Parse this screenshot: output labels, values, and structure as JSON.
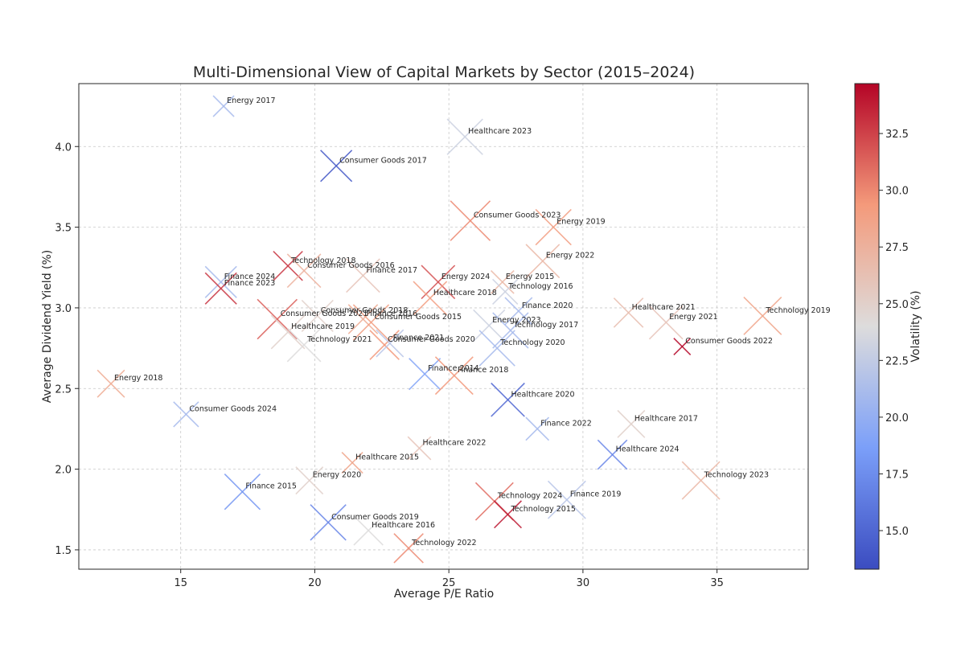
{
  "chart_data": {
    "type": "scatter",
    "title": "Multi-Dimensional View of Capital Markets by Sector (2015–2024)",
    "xlabel": "Average P/E Ratio",
    "ylabel": "Average Dividend Yield (%)",
    "colorbar_label": "Volatility (%)",
    "xlim": [
      11.2,
      38.4
    ],
    "ylim": [
      1.38,
      4.39
    ],
    "xticks": [
      "15",
      "20",
      "25",
      "30",
      "35"
    ],
    "yticks": [
      "1.5",
      "2.0",
      "2.5",
      "3.0",
      "3.5",
      "4.0"
    ],
    "colorbar_ticks": [
      "15.0",
      "17.5",
      "20.0",
      "22.5",
      "25.0",
      "27.5",
      "30.0",
      "32.5"
    ],
    "color_range": [
      13.3,
      34.7
    ],
    "marker": "x",
    "grid": true,
    "points": [
      {
        "label": "Energy 2017",
        "x": 16.6,
        "y": 4.25,
        "volatility": 21,
        "size": 1.0
      },
      {
        "label": "Healthcare 2023",
        "x": 25.6,
        "y": 4.06,
        "volatility": 23,
        "size": 1.7
      },
      {
        "label": "Consumer Goods 2017",
        "x": 20.8,
        "y": 3.88,
        "volatility": 14,
        "size": 1.5
      },
      {
        "label": "Consumer Goods 2023",
        "x": 25.8,
        "y": 3.54,
        "volatility": 30,
        "size": 1.9
      },
      {
        "label": "Energy 2019",
        "x": 28.9,
        "y": 3.5,
        "volatility": 29,
        "size": 1.7
      },
      {
        "label": "Energy 2022",
        "x": 28.5,
        "y": 3.29,
        "volatility": 27,
        "size": 1.6
      },
      {
        "label": "Technology 2018",
        "x": 19.0,
        "y": 3.26,
        "volatility": 33,
        "size": 1.4
      },
      {
        "label": "Consumer Goods 2016",
        "x": 19.6,
        "y": 3.23,
        "volatility": 27.5,
        "size": 1.6
      },
      {
        "label": "Finance 2017",
        "x": 21.8,
        "y": 3.2,
        "volatility": 26,
        "size": 1.6
      },
      {
        "label": "Energy 2024",
        "x": 24.6,
        "y": 3.16,
        "volatility": 32,
        "size": 1.6
      },
      {
        "label": "Energy 2015",
        "x": 27.0,
        "y": 3.16,
        "volatility": 27,
        "size": 1.1
      },
      {
        "label": "Finance 2024",
        "x": 16.5,
        "y": 3.16,
        "volatility": 21,
        "size": 1.5
      },
      {
        "label": "Finance 2023",
        "x": 16.5,
        "y": 3.12,
        "volatility": 33,
        "size": 1.5
      },
      {
        "label": "Technology 2016",
        "x": 27.1,
        "y": 3.1,
        "volatility": 23,
        "size": 1.2
      },
      {
        "label": "Healthcare 2018",
        "x": 24.3,
        "y": 3.06,
        "volatility": 29,
        "size": 1.6
      },
      {
        "label": "Finance 2020",
        "x": 27.6,
        "y": 2.98,
        "volatility": 21,
        "size": 1.3
      },
      {
        "label": "Healthcare 2021",
        "x": 31.7,
        "y": 2.97,
        "volatility": 26.5,
        "size": 1.4
      },
      {
        "label": "Energy 2021",
        "x": 33.1,
        "y": 2.91,
        "volatility": 26,
        "size": 1.6
      },
      {
        "label": "Technology 2019",
        "x": 36.7,
        "y": 2.95,
        "volatility": 28.5,
        "size": 1.8
      },
      {
        "label": "Consumer Goods 2018",
        "x": 20.1,
        "y": 2.95,
        "volatility": 25,
        "size": 1.5
      },
      {
        "label": "Consumer Goods 2021",
        "x": 18.6,
        "y": 2.93,
        "volatility": 31.5,
        "size": 1.9
      },
      {
        "label": "Finance 2016",
        "x": 21.8,
        "y": 2.93,
        "volatility": 28,
        "size": 1.4
      },
      {
        "label": "Consumer Goods 2015",
        "x": 22.1,
        "y": 2.91,
        "volatility": 29,
        "size": 1.7
      },
      {
        "label": "Energy 2023",
        "x": 26.5,
        "y": 2.89,
        "volatility": 23,
        "size": 1.5
      },
      {
        "label": "Technology 2017",
        "x": 27.3,
        "y": 2.86,
        "volatility": 21,
        "size": 1.7
      },
      {
        "label": "Healthcare 2019",
        "x": 19.0,
        "y": 2.85,
        "volatility": 25,
        "size": 1.6
      },
      {
        "label": "Technology 2021",
        "x": 19.6,
        "y": 2.77,
        "volatility": 24,
        "size": 1.6
      },
      {
        "label": "Consumer Goods 2020",
        "x": 22.6,
        "y": 2.77,
        "volatility": 29.5,
        "size": 1.4
      },
      {
        "label": "Finance 2021",
        "x": 22.8,
        "y": 2.78,
        "volatility": 22,
        "size": 1.3
      },
      {
        "label": "Technology 2020",
        "x": 26.8,
        "y": 2.75,
        "volatility": 21,
        "size": 1.7
      },
      {
        "label": "Consumer Goods 2022",
        "x": 33.7,
        "y": 2.76,
        "volatility": 34.7,
        "size": 0.8
      },
      {
        "label": "Energy 2018",
        "x": 12.4,
        "y": 2.53,
        "volatility": 28,
        "size": 1.3
      },
      {
        "label": "Finance 2014",
        "x": 24.1,
        "y": 2.59,
        "volatility": 19,
        "size": 1.5
      },
      {
        "label": "Finance 2018",
        "x": 25.2,
        "y": 2.58,
        "volatility": 29.5,
        "size": 1.8
      },
      {
        "label": "Healthcare 2020",
        "x": 27.2,
        "y": 2.43,
        "volatility": 15,
        "size": 1.6
      },
      {
        "label": "Consumer Goods 2024",
        "x": 15.2,
        "y": 2.34,
        "volatility": 21,
        "size": 1.2
      },
      {
        "label": "Finance 2022",
        "x": 28.3,
        "y": 2.25,
        "volatility": 21,
        "size": 1.1
      },
      {
        "label": "Healthcare 2017",
        "x": 31.8,
        "y": 2.28,
        "volatility": 25,
        "size": 1.3
      },
      {
        "label": "Healthcare 2022",
        "x": 23.9,
        "y": 2.13,
        "volatility": 26,
        "size": 1.1
      },
      {
        "label": "Healthcare 2024",
        "x": 31.1,
        "y": 2.09,
        "volatility": 17,
        "size": 1.4
      },
      {
        "label": "Healthcare 2015",
        "x": 21.4,
        "y": 2.04,
        "volatility": 28.5,
        "size": 1.0
      },
      {
        "label": "Energy 2020",
        "x": 19.8,
        "y": 1.93,
        "volatility": 25,
        "size": 1.3
      },
      {
        "label": "Technology 2023",
        "x": 34.4,
        "y": 1.93,
        "volatility": 27,
        "size": 1.8
      },
      {
        "label": "Finance 2015",
        "x": 17.3,
        "y": 1.86,
        "volatility": 18,
        "size": 1.7
      },
      {
        "label": "Technology 2024",
        "x": 26.7,
        "y": 1.8,
        "volatility": 31,
        "size": 1.8
      },
      {
        "label": "Finance 2019",
        "x": 29.4,
        "y": 1.81,
        "volatility": 22,
        "size": 1.8
      },
      {
        "label": "Technology 2015",
        "x": 27.2,
        "y": 1.72,
        "volatility": 34,
        "size": 1.3
      },
      {
        "label": "Consumer Goods 2019",
        "x": 20.5,
        "y": 1.67,
        "volatility": 17,
        "size": 1.7
      },
      {
        "label": "Healthcare 2016",
        "x": 22.0,
        "y": 1.62,
        "volatility": 24,
        "size": 1.4
      },
      {
        "label": "Technology 2022",
        "x": 23.5,
        "y": 1.51,
        "volatility": 30,
        "size": 1.4
      }
    ]
  }
}
